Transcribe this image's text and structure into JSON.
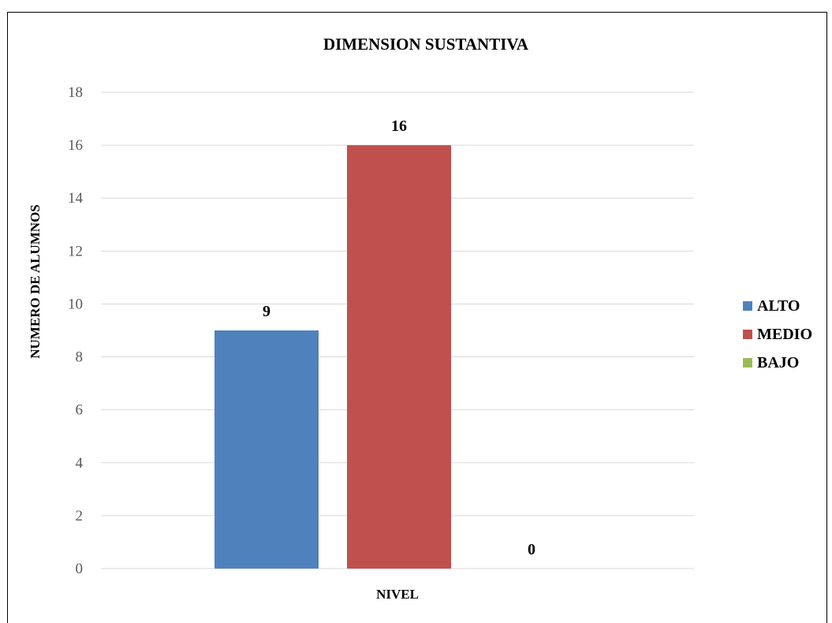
{
  "chart_data": {
    "type": "bar",
    "title": "DIMENSION SUSTANTIVA",
    "xlabel": "NIVEL",
    "ylabel": "NUMERO DE ALUMNOS",
    "categories": [
      "NIVEL"
    ],
    "series": [
      {
        "name": "ALTO",
        "values": [
          9
        ],
        "color": "#4f81bd"
      },
      {
        "name": "MEDIO",
        "values": [
          16
        ],
        "color": "#c0504d"
      },
      {
        "name": "BAJO",
        "values": [
          0
        ],
        "color": "#9bbb59"
      }
    ],
    "data_labels": [
      "9",
      "16",
      "0"
    ],
    "ylim": [
      0,
      18
    ],
    "yticks": [
      "0",
      "2",
      "4",
      "6",
      "8",
      "10",
      "12",
      "14",
      "16",
      "18"
    ],
    "grid": true,
    "legend_position": "right"
  }
}
